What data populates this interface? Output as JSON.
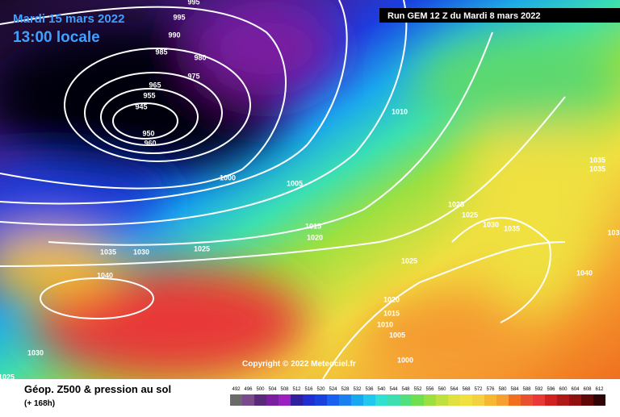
{
  "header": {
    "date": "Mardi 15 mars 2022",
    "time": "13:00 locale",
    "run": "Run GEM 12 Z du Mardi 8 mars 2022"
  },
  "isobar_labels": [
    "995",
    "995",
    "990",
    "985",
    "980",
    "975",
    "965",
    "955",
    "945",
    "950",
    "960",
    "1000",
    "1005",
    "1010",
    "1015",
    "1020",
    "1025",
    "1035",
    "1030",
    "1040",
    "1025",
    "1025",
    "1030",
    "1035",
    "1025",
    "1035",
    "1035",
    "1040",
    "1020",
    "1015",
    "1010",
    "1005",
    "1000",
    "1030",
    "1025",
    "103"
  ],
  "copyright": "Copyright © 2022 Meteociel.fr",
  "footer": {
    "title": "Géop. Z500 & pression au sol",
    "subtitle": "(+ 168h)"
  },
  "scale": {
    "labels": [
      492,
      496,
      500,
      504,
      508,
      512,
      516,
      520,
      524,
      528,
      532,
      536,
      540,
      544,
      548,
      552,
      556,
      560,
      564,
      568,
      572,
      576,
      580,
      584,
      588,
      592,
      596,
      600,
      604,
      608,
      612
    ]
  }
}
